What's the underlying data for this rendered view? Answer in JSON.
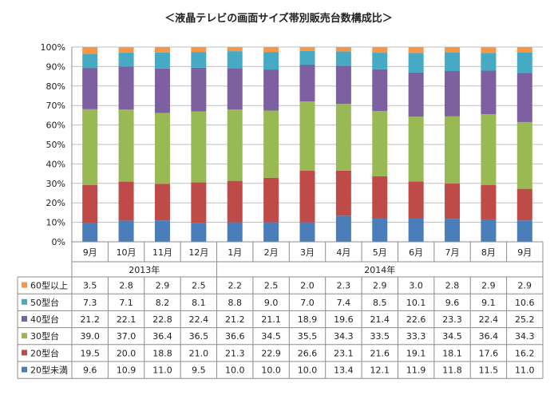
{
  "chart_data": {
    "type": "bar",
    "stacked": true,
    "title": "＜液晶テレビの画面サイズ帯別販売台数構成比＞",
    "xlabel": "",
    "ylabel": "",
    "ylim": [
      0,
      100
    ],
    "y_ticks": [
      "0%",
      "10%",
      "20%",
      "30%",
      "40%",
      "50%",
      "60%",
      "70%",
      "80%",
      "90%",
      "100%"
    ],
    "grid": true,
    "legend": "table-left",
    "categories": [
      "9月",
      "10月",
      "11月",
      "12月",
      "1月",
      "2月",
      "3月",
      "4月",
      "5月",
      "6月",
      "7月",
      "8月",
      "9月"
    ],
    "year_groups": [
      {
        "label": "2013年",
        "count": 4
      },
      {
        "label": "2014年",
        "count": 9
      }
    ],
    "series": [
      {
        "name": "20型未満",
        "color": "#4a7ebb",
        "values": [
          9.6,
          10.9,
          11.0,
          9.5,
          10.0,
          10.0,
          10.0,
          13.4,
          12.1,
          11.9,
          11.8,
          11.5,
          11.0
        ]
      },
      {
        "name": "20型台",
        "color": "#be4b48",
        "values": [
          19.5,
          20.0,
          18.8,
          21.0,
          21.3,
          22.9,
          26.6,
          23.1,
          21.6,
          19.1,
          18.1,
          17.6,
          16.2
        ]
      },
      {
        "name": "30型台",
        "color": "#98b954",
        "values": [
          39.0,
          37.0,
          36.4,
          36.5,
          36.6,
          34.5,
          35.5,
          34.3,
          33.5,
          33.3,
          34.5,
          36.4,
          34.3
        ]
      },
      {
        "name": "40型台",
        "color": "#7d60a0",
        "values": [
          21.2,
          22.1,
          22.8,
          22.4,
          21.2,
          21.1,
          18.9,
          19.6,
          21.4,
          22.6,
          23.3,
          22.4,
          25.2
        ]
      },
      {
        "name": "50型台",
        "color": "#46aac5",
        "values": [
          7.3,
          7.1,
          8.2,
          8.1,
          8.8,
          9.0,
          7.0,
          7.4,
          8.5,
          10.1,
          9.6,
          9.1,
          10.6
        ]
      },
      {
        "name": "60型以上",
        "color": "#f79646",
        "values": [
          3.5,
          2.8,
          2.9,
          2.5,
          2.2,
          2.5,
          2.0,
          2.3,
          2.9,
          3.0,
          2.8,
          2.9,
          2.9
        ]
      }
    ]
  }
}
